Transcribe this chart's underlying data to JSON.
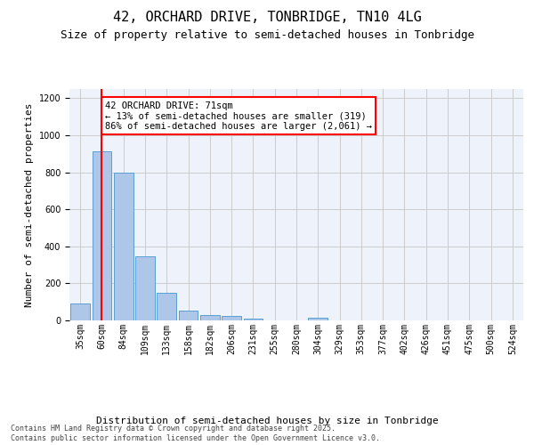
{
  "title1": "42, ORCHARD DRIVE, TONBRIDGE, TN10 4LG",
  "title2": "Size of property relative to semi-detached houses in Tonbridge",
  "xlabel": "Distribution of semi-detached houses by size in Tonbridge",
  "ylabel": "Number of semi-detached properties",
  "categories": [
    "35sqm",
    "60sqm",
    "84sqm",
    "109sqm",
    "133sqm",
    "158sqm",
    "182sqm",
    "206sqm",
    "231sqm",
    "255sqm",
    "280sqm",
    "304sqm",
    "329sqm",
    "353sqm",
    "377sqm",
    "402sqm",
    "426sqm",
    "451sqm",
    "475sqm",
    "500sqm",
    "524sqm"
  ],
  "values": [
    90,
    915,
    800,
    345,
    150,
    52,
    28,
    25,
    12,
    0,
    0,
    15,
    0,
    0,
    0,
    0,
    0,
    0,
    0,
    0,
    0
  ],
  "bar_color": "#aec6e8",
  "bar_edge_color": "#5a9fd4",
  "annotation_text": "42 ORCHARD DRIVE: 71sqm\n← 13% of semi-detached houses are smaller (319)\n86% of semi-detached houses are larger (2,061) →",
  "vline_x": 1,
  "vline_color": "red",
  "annotation_box_color": "white",
  "annotation_box_edge_color": "red",
  "ylim": [
    0,
    1250
  ],
  "yticks": [
    0,
    200,
    400,
    600,
    800,
    1000,
    1200
  ],
  "grid_color": "#cccccc",
  "bg_color": "#eef2fb",
  "footer": "Contains HM Land Registry data © Crown copyright and database right 2025.\nContains public sector information licensed under the Open Government Licence v3.0.",
  "title1_fontsize": 11,
  "title2_fontsize": 9,
  "axis_label_fontsize": 8,
  "tick_fontsize": 7,
  "annotation_fontsize": 7.5,
  "footer_fontsize": 6
}
